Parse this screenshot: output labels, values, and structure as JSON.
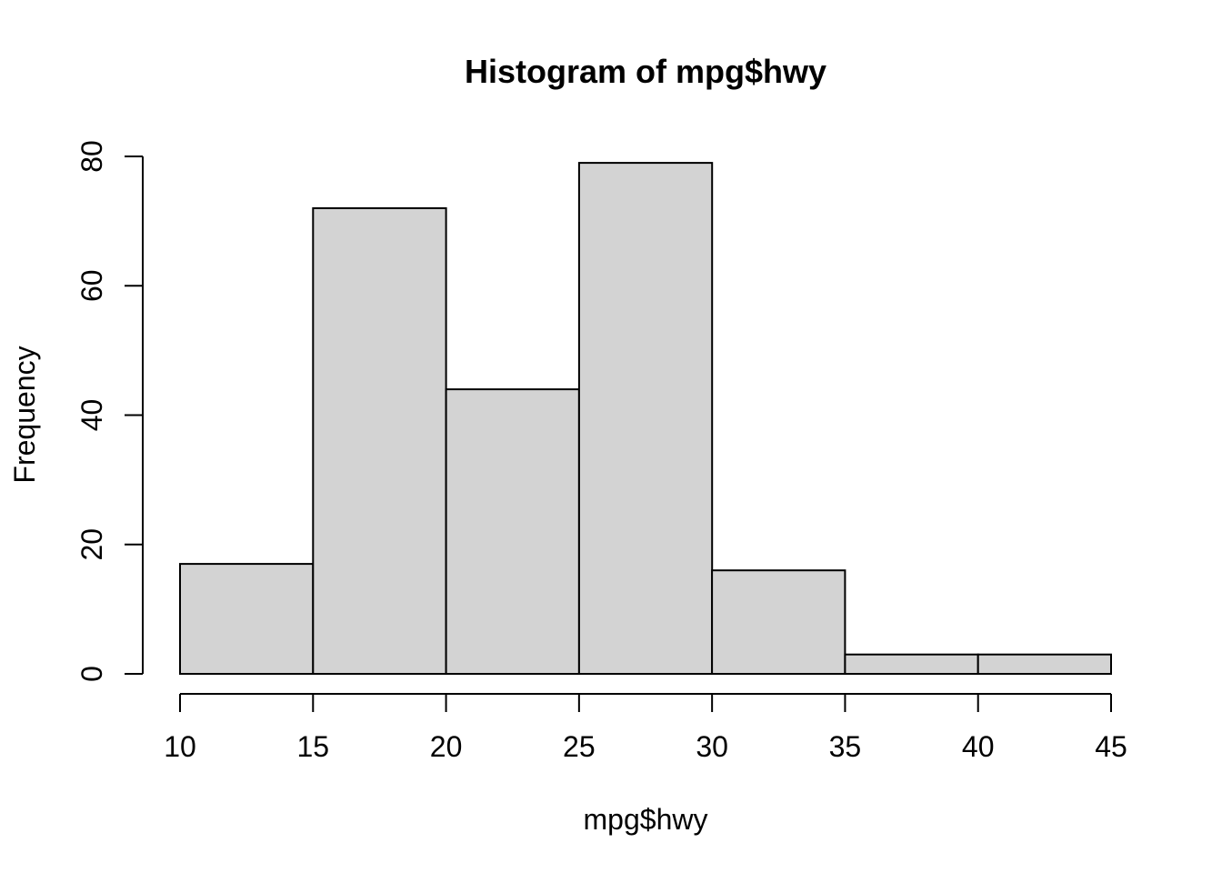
{
  "chart_data": {
    "type": "bar",
    "subtype": "histogram",
    "title": "Histogram of mpg$hwy",
    "xlabel": "mpg$hwy",
    "ylabel": "Frequency",
    "bin_edges": [
      10,
      15,
      20,
      25,
      30,
      35,
      40,
      45
    ],
    "counts": [
      17,
      72,
      44,
      79,
      16,
      3,
      3
    ],
    "x_tick_labels": [
      "10",
      "15",
      "20",
      "25",
      "30",
      "35",
      "40",
      "45"
    ],
    "x_tick_values": [
      10,
      15,
      20,
      25,
      30,
      35,
      40,
      45
    ],
    "y_tick_labels": [
      "0",
      "20",
      "40",
      "60",
      "80"
    ],
    "y_tick_values": [
      0,
      20,
      40,
      60,
      80
    ],
    "xlim": [
      10,
      45
    ],
    "ylim": [
      0,
      80
    ],
    "grid": false,
    "legend": null,
    "colors": {
      "bar_fill": "#d3d3d3",
      "bar_stroke": "#000000",
      "axis": "#000000",
      "text": "#000000",
      "background": "#ffffff"
    }
  }
}
